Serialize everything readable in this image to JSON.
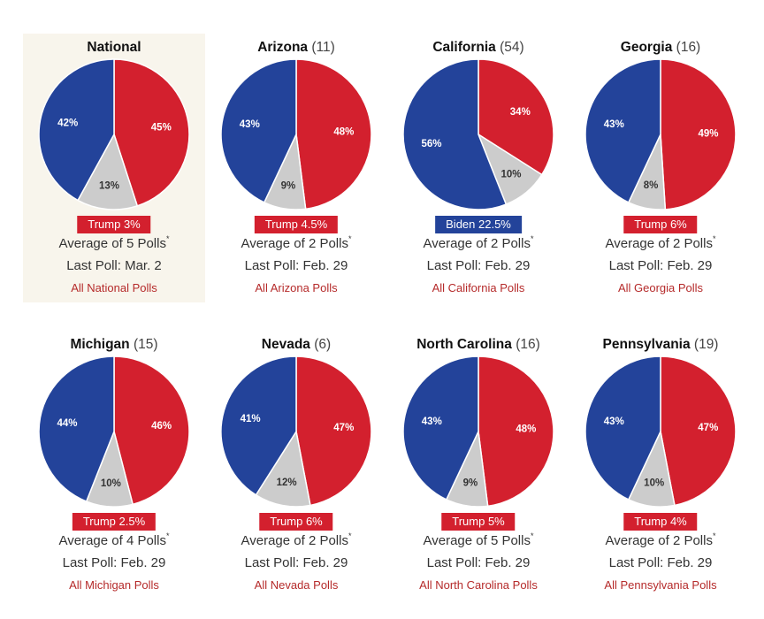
{
  "colors": {
    "trump": "#d3202e",
    "biden": "#23439a",
    "other": "#cccccc",
    "highlight_bg": "#f8f5ec",
    "link": "#b52a2a"
  },
  "chart_data": [
    {
      "type": "pie",
      "title": "National",
      "electoral_votes": "",
      "slices": [
        {
          "label": "45%",
          "value": 45,
          "color": "#d3202e"
        },
        {
          "label": "13%",
          "value": 13,
          "color": "#cccccc"
        },
        {
          "label": "42%",
          "value": 42,
          "color": "#23439a"
        }
      ],
      "leader": "Trump 3%",
      "leader_party": "rep",
      "average": "Average of 5 Polls",
      "average_mark": "*",
      "last_poll": "Last Poll: Mar. 2",
      "link": "All National Polls",
      "highlight": true
    },
    {
      "type": "pie",
      "title": "Arizona",
      "electoral_votes": "(11)",
      "slices": [
        {
          "label": "48%",
          "value": 48,
          "color": "#d3202e"
        },
        {
          "label": "9%",
          "value": 9,
          "color": "#cccccc"
        },
        {
          "label": "43%",
          "value": 43,
          "color": "#23439a"
        }
      ],
      "leader": "Trump 4.5%",
      "leader_party": "rep",
      "average": "Average of 2 Polls",
      "average_mark": "*",
      "last_poll": "Last Poll: Feb. 29",
      "link": "All Arizona Polls",
      "highlight": false
    },
    {
      "type": "pie",
      "title": "California",
      "electoral_votes": "(54)",
      "slices": [
        {
          "label": "34%",
          "value": 34,
          "color": "#d3202e"
        },
        {
          "label": "10%",
          "value": 10,
          "color": "#cccccc"
        },
        {
          "label": "56%",
          "value": 56,
          "color": "#23439a"
        }
      ],
      "leader": "Biden 22.5%",
      "leader_party": "dem",
      "average": "Average of 2 Polls",
      "average_mark": "*",
      "last_poll": "Last Poll: Feb. 29",
      "link": "All California Polls",
      "highlight": false
    },
    {
      "type": "pie",
      "title": "Georgia",
      "electoral_votes": "(16)",
      "slices": [
        {
          "label": "49%",
          "value": 49,
          "color": "#d3202e"
        },
        {
          "label": "8%",
          "value": 8,
          "color": "#cccccc"
        },
        {
          "label": "43%",
          "value": 43,
          "color": "#23439a"
        }
      ],
      "leader": "Trump 6%",
      "leader_party": "rep",
      "average": "Average of 2 Polls",
      "average_mark": "*",
      "last_poll": "Last Poll: Feb. 29",
      "link": "All Georgia Polls",
      "highlight": false
    },
    {
      "type": "pie",
      "title": "Michigan",
      "electoral_votes": "(15)",
      "slices": [
        {
          "label": "46%",
          "value": 46,
          "color": "#d3202e"
        },
        {
          "label": "10%",
          "value": 10,
          "color": "#cccccc"
        },
        {
          "label": "44%",
          "value": 44,
          "color": "#23439a"
        }
      ],
      "leader": "Trump 2.5%",
      "leader_party": "rep",
      "average": "Average of 4 Polls",
      "average_mark": "*",
      "last_poll": "Last Poll: Feb. 29",
      "link": "All Michigan Polls",
      "highlight": false
    },
    {
      "type": "pie",
      "title": "Nevada",
      "electoral_votes": "(6)",
      "slices": [
        {
          "label": "47%",
          "value": 47,
          "color": "#d3202e"
        },
        {
          "label": "12%",
          "value": 12,
          "color": "#cccccc"
        },
        {
          "label": "41%",
          "value": 41,
          "color": "#23439a"
        }
      ],
      "leader": "Trump 6%",
      "leader_party": "rep",
      "average": "Average of 2 Polls",
      "average_mark": "*",
      "last_poll": "Last Poll: Feb. 29",
      "link": "All Nevada Polls",
      "highlight": false
    },
    {
      "type": "pie",
      "title": "North Carolina",
      "electoral_votes": "(16)",
      "slices": [
        {
          "label": "48%",
          "value": 48,
          "color": "#d3202e"
        },
        {
          "label": "9%",
          "value": 9,
          "color": "#cccccc"
        },
        {
          "label": "43%",
          "value": 43,
          "color": "#23439a"
        }
      ],
      "leader": "Trump 5%",
      "leader_party": "rep",
      "average": "Average of 5 Polls",
      "average_mark": "*",
      "last_poll": "Last Poll: Feb. 29",
      "link": "All North Carolina Polls",
      "highlight": false
    },
    {
      "type": "pie",
      "title": "Pennsylvania",
      "electoral_votes": "(19)",
      "slices": [
        {
          "label": "47%",
          "value": 47,
          "color": "#d3202e"
        },
        {
          "label": "10%",
          "value": 10,
          "color": "#cccccc"
        },
        {
          "label": "43%",
          "value": 43,
          "color": "#23439a"
        }
      ],
      "leader": "Trump 4%",
      "leader_party": "rep",
      "average": "Average of 2 Polls",
      "average_mark": "*",
      "last_poll": "Last Poll: Feb. 29",
      "link": "All Pennsylvania Polls",
      "highlight": false
    }
  ]
}
